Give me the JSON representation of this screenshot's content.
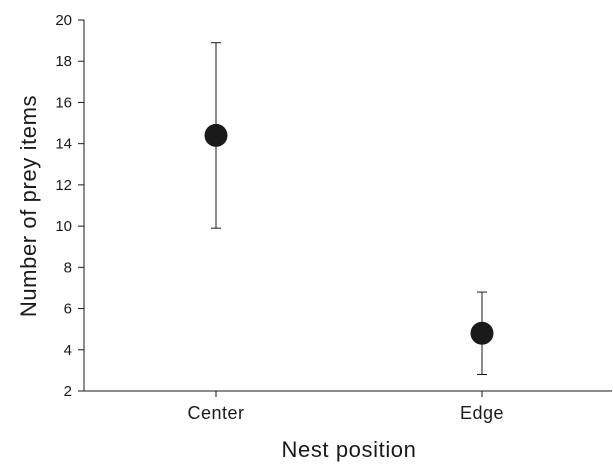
{
  "chart_data": {
    "type": "scatter",
    "title": "",
    "xlabel": "Nest position",
    "ylabel": "Number of prey items",
    "categories": [
      "Center",
      "Edge"
    ],
    "series": [
      {
        "values": [
          14.4,
          4.8
        ],
        "error_low": [
          9.9,
          2.8
        ],
        "error_high": [
          18.9,
          6.8
        ]
      }
    ],
    "ylim": [
      2,
      20
    ],
    "yticks": [
      2,
      4,
      6,
      8,
      10,
      12,
      14,
      16,
      18,
      20
    ],
    "grid": false,
    "legend": "none",
    "colors": {
      "marker": "#1a1a1a",
      "axis": "#1a1a1a"
    }
  }
}
